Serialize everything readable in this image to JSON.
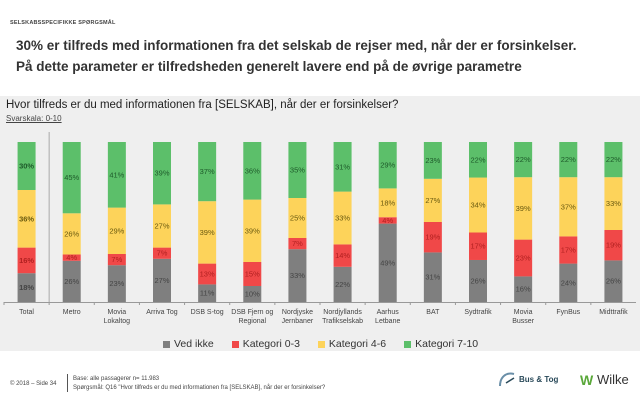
{
  "header": {
    "eyebrow": "SELSKABSSPECIFIKKE SPØRGSMÅL",
    "headline_1": "30% er tilfreds med informationen fra det selskab de rejser med, når der er forsinkelser.",
    "headline_2": "På dette parameter er tilfredsheden generelt lavere end på de øvrige parametre"
  },
  "question": {
    "title": "Hvor tilfreds er du med informationen fra [SELSKAB], når der er forsinkelser?",
    "scale": "Svarskala: 0-10"
  },
  "chart_data": {
    "type": "bar",
    "stacked": true,
    "normalized": true,
    "title": "Hvor tilfreds er du med informationen fra [SELSKAB], når der er forsinkelser?",
    "xlabel": "",
    "ylabel": "",
    "ylim": [
      0,
      100
    ],
    "grid": false,
    "legend_position": "bottom",
    "categories": [
      [
        "Total"
      ],
      [
        "Metro"
      ],
      [
        "Movia",
        "Lokaltog"
      ],
      [
        "Arriva Tog"
      ],
      [
        "DSB S-tog"
      ],
      [
        "DSB Fjern og",
        "Regional"
      ],
      [
        "Nordjyske",
        "Jernbaner"
      ],
      [
        "Nordjyllands",
        "Trafikselskab"
      ],
      [
        "Aarhus",
        "Letbane"
      ],
      [
        "BAT"
      ],
      [
        "Sydtrafik"
      ],
      [
        "Movia",
        "Busser"
      ],
      [
        "FynBus"
      ],
      [
        "Midttrafik"
      ]
    ],
    "series": [
      {
        "name": "Ved ikke",
        "color": "#7f7f7f",
        "values": [
          18,
          26,
          23,
          27,
          11,
          10,
          33,
          22,
          49,
          31,
          26,
          16,
          24,
          26
        ]
      },
      {
        "name": "Kategori 0-3",
        "color": "#f04848",
        "values": [
          16,
          4,
          7,
          7,
          13,
          15,
          7,
          14,
          4,
          19,
          17,
          23,
          17,
          19
        ]
      },
      {
        "name": "Kategori 4-6",
        "color": "#fdd35a",
        "values": [
          36,
          26,
          29,
          27,
          39,
          39,
          25,
          33,
          18,
          27,
          34,
          39,
          37,
          33
        ]
      },
      {
        "name": "Kategori 7-10",
        "color": "#5cbf6a",
        "values": [
          30,
          45,
          41,
          39,
          37,
          36,
          35,
          31,
          29,
          23,
          22,
          22,
          22,
          22
        ]
      }
    ],
    "label_suffix": "%",
    "bold_category": "Total"
  },
  "legend": [
    {
      "label": "Ved ikke",
      "color": "#7f7f7f"
    },
    {
      "label": "Kategori 0-3",
      "color": "#f04848"
    },
    {
      "label": "Kategori 4-6",
      "color": "#fdd35a"
    },
    {
      "label": "Kategori 7-10",
      "color": "#5cbf6a"
    }
  ],
  "footer": {
    "page": "© 2018 – Side 34",
    "base": "Base: alle passagerer n= 11.983",
    "question": "Spørgsmål: Q16 \"Hvor tilfreds er du med informationen fra [SELSKAB], når der er forsinkelser?"
  },
  "logos": {
    "bus_tog": "Bus & Tog",
    "w": "W",
    "wilke": "Wilke"
  }
}
